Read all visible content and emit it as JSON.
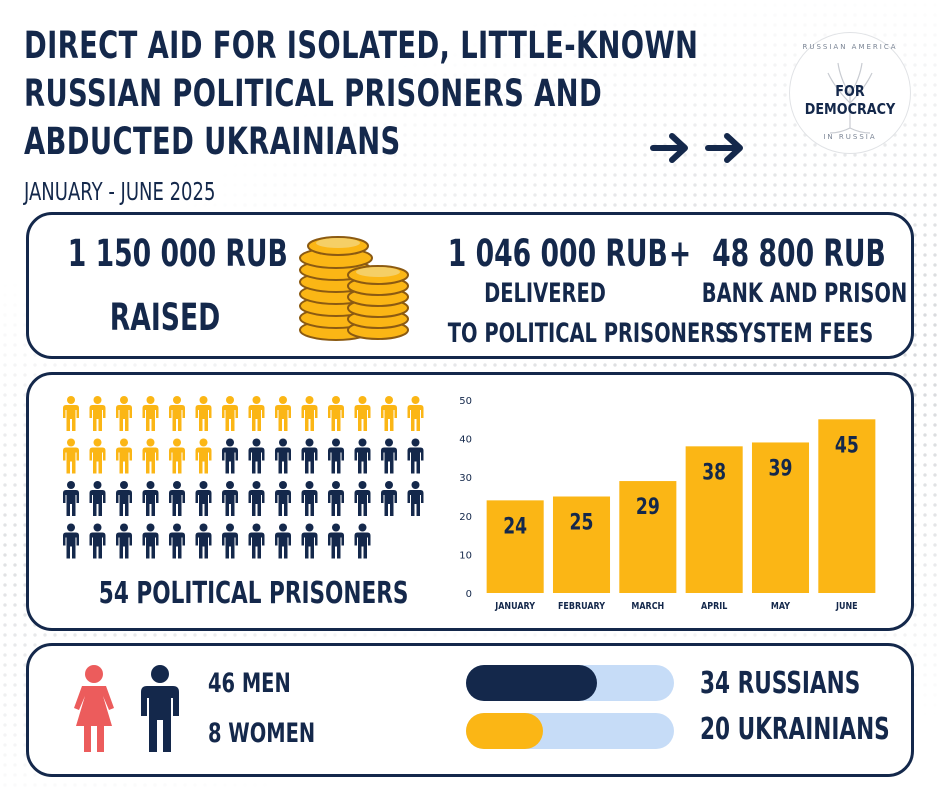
{
  "header": {
    "title_lines": [
      "DIRECT AID FOR ISOLATED, LITTLE-KNOWN",
      "RUSSIAN POLITICAL PRISONERS AND",
      "ABDUCTED UKRAINIANS"
    ],
    "period": "JANUARY - JUNE 2025"
  },
  "logo": {
    "top": "RUSSIAN AMERICA",
    "main": "FOR DEMOCRACY",
    "bottom": "IN RUSSIA"
  },
  "icons": [
    "arrow-right-icon",
    "coins-icon",
    "person-icon",
    "female-icon",
    "male-icon"
  ],
  "money": {
    "raised_amount": "1 150 000 RUB",
    "raised_label": "RAISED",
    "delivered_amount": "1 046 000 RUB",
    "delivered_label_1": "DELIVERED",
    "delivered_label_2": "TO POLITICAL PRISONERS",
    "plus": "+",
    "fees_amount": "48 800 RUB",
    "fees_label_1": "BANK AND PRISON",
    "fees_label_2": "SYSTEM FEES"
  },
  "prisoners": {
    "label": "54 POLITICAL PRISONERS",
    "total": 54,
    "highlighted": 20,
    "per_row": 14
  },
  "chart_data": {
    "type": "bar",
    "categories": [
      "JANUARY",
      "FEBRUARY",
      "MARCH",
      "APRIL",
      "MAY",
      "JUNE"
    ],
    "values": [
      24,
      25,
      29,
      38,
      39,
      45
    ],
    "ylim": [
      0,
      50
    ],
    "yticks": [
      0,
      10,
      20,
      30,
      40,
      50
    ],
    "grid": false,
    "data_labels": true
  },
  "demographics": {
    "men": "46 MEN",
    "women": "8 WOMEN",
    "russians_label": "34 RUSSIANS",
    "ukrainians_label": "20 UKRAINIANS",
    "russians": 34,
    "ukrainians": 20,
    "total": 54
  },
  "colors": {
    "navy": "#14284b",
    "gold": "#fbb615",
    "light_blue": "#c6dcf7",
    "pink": "#ec5c5c"
  }
}
